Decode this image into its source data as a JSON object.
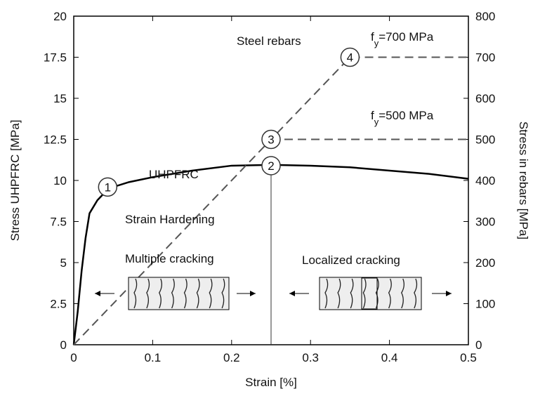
{
  "chart_data": {
    "type": "line",
    "xlabel": "Strain [%]",
    "ylabel": "Stress UHPFRC [MPa]",
    "y2label": "Stress in rebars [MPa]",
    "xlim": [
      0,
      0.5
    ],
    "xticks": [
      0,
      0.1,
      0.2,
      0.3,
      0.4,
      0.5
    ],
    "ylim": [
      0,
      20
    ],
    "yticks": [
      0,
      2.5,
      5,
      7.5,
      10,
      12.5,
      15,
      17.5,
      20
    ],
    "y2lim": [
      0,
      800
    ],
    "y2ticks": [
      0,
      100,
      200,
      300,
      400,
      500,
      600,
      700,
      800
    ],
    "series": [
      {
        "name": "UHPFRC",
        "color": "#000000",
        "dashed": false,
        "x": [
          0,
          0.005,
          0.01,
          0.015,
          0.02,
          0.03,
          0.04,
          0.05,
          0.07,
          0.1,
          0.15,
          0.2,
          0.25,
          0.3,
          0.35,
          0.4,
          0.45,
          0.5
        ],
        "values": [
          0,
          2,
          4.5,
          6.5,
          8,
          8.8,
          9.3,
          9.6,
          9.9,
          10.2,
          10.6,
          10.9,
          10.95,
          10.9,
          10.8,
          10.6,
          10.4,
          10.1
        ]
      },
      {
        "name": "Steel rebars",
        "color": "#555555",
        "dashed": true,
        "axis": "y2",
        "x": [
          0,
          0.35,
          0.5
        ],
        "values": [
          0,
          700,
          700
        ]
      },
      {
        "color": "#555555",
        "dashed": true,
        "axis": "y2",
        "x": [
          0.25,
          0.5
        ],
        "values": [
          500,
          500
        ]
      }
    ],
    "fy": [
      {
        "f": "f",
        "sub": "y",
        "rest": "=700 MPa"
      },
      {
        "f": "f",
        "sub": "y",
        "rest": "=500 MPa"
      }
    ],
    "points": [
      {
        "label": "1",
        "x": 0.043,
        "y": 9.6
      },
      {
        "label": "2",
        "x": 0.25,
        "y": 10.9
      },
      {
        "label": "3",
        "x": 0.25,
        "y": 12.5
      },
      {
        "label": "4",
        "x": 0.35,
        "y": 17.5
      }
    ],
    "vline": {
      "x": 0.25,
      "y": [
        0,
        10.5
      ]
    },
    "annotations": [
      "Strain Hardening",
      "Multiple cracking",
      "Localized cracking"
    ]
  }
}
